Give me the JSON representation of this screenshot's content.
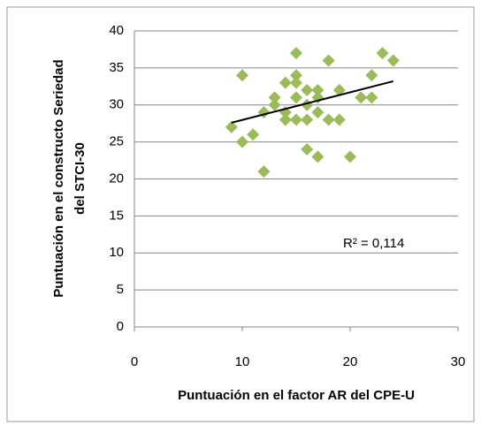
{
  "chart_data": {
    "type": "scatter",
    "x_label": "Puntuación en el factor AR del CPE-U",
    "y_label": [
      "Puntuación en el constructo Seriedad",
      "del STCI-30"
    ],
    "annotation": "R² = 0,114",
    "x": [
      9,
      10,
      10,
      11,
      12,
      12,
      13,
      13,
      14,
      14,
      14,
      15,
      15,
      15,
      15,
      15,
      16,
      16,
      16,
      16,
      17,
      17,
      17,
      17,
      18,
      18,
      19,
      19,
      20,
      21,
      22,
      22,
      23,
      24
    ],
    "values": [
      27,
      34,
      25,
      26,
      21,
      29,
      30,
      31,
      33,
      29,
      28,
      37,
      34,
      31,
      28,
      33,
      32,
      30,
      28,
      24,
      32,
      31,
      29,
      23,
      36,
      28,
      32,
      28,
      23,
      31,
      34,
      31,
      37,
      36
    ],
    "color": "#9bbb59",
    "trendline": {
      "x": [
        9,
        24
      ],
      "y": [
        27.6,
        33.2
      ],
      "color": "#000000"
    },
    "xlim": [
      0,
      30
    ],
    "xticks": [
      0,
      10,
      20,
      30
    ],
    "ylim": [
      0,
      40
    ],
    "yticks": [
      0,
      5,
      10,
      15,
      20,
      25,
      30,
      35,
      40
    ],
    "grid": true
  }
}
